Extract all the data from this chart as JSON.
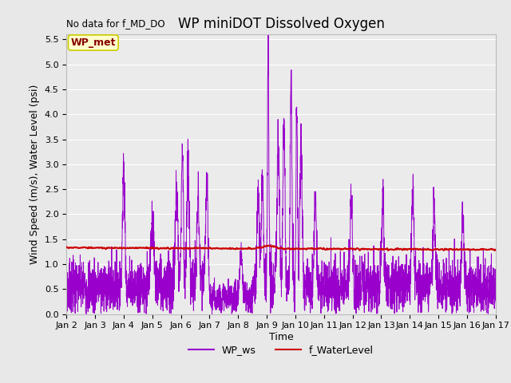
{
  "title": "WP miniDOT Dissolved Oxygen",
  "top_left_text": "No data for f_MD_DO",
  "ylabel": "Wind Speed (m/s), Water Level (psi)",
  "xlabel": "Time",
  "ylim": [
    0.0,
    5.6
  ],
  "yticks": [
    0.0,
    0.5,
    1.0,
    1.5,
    2.0,
    2.5,
    3.0,
    3.5,
    4.0,
    4.5,
    5.0,
    5.5
  ],
  "xtick_labels": [
    "Jan 2",
    "Jan 3",
    "Jan 4",
    "Jan 5",
    "Jan 6",
    "Jan 7",
    "Jan 8",
    "Jan 9",
    "Jan 10",
    "Jan 11",
    "Jan 12",
    "Jan 13",
    "Jan 14",
    "Jan 15",
    "Jan 16",
    "Jan 17"
  ],
  "legend_labels": [
    "WP_ws",
    "f_WaterLevel"
  ],
  "wp_ws_color": "#9900CC",
  "f_wl_color": "#CC0000",
  "annotation_box_facecolor": "#FFFFCC",
  "annotation_box_edgecolor": "#CCCC00",
  "annotation_text": "WP_met",
  "annotation_text_color": "#880000",
  "background_color": "#E8E8E8",
  "plot_bg_color": "#EBEBEB",
  "grid_color": "#FFFFFF",
  "title_fontsize": 12,
  "label_fontsize": 9,
  "tick_fontsize": 8,
  "f_water_level_value": 1.33,
  "f_water_level_noise": 0.008,
  "wp_ws_base_mean": 0.55,
  "wp_ws_base_std": 0.28
}
